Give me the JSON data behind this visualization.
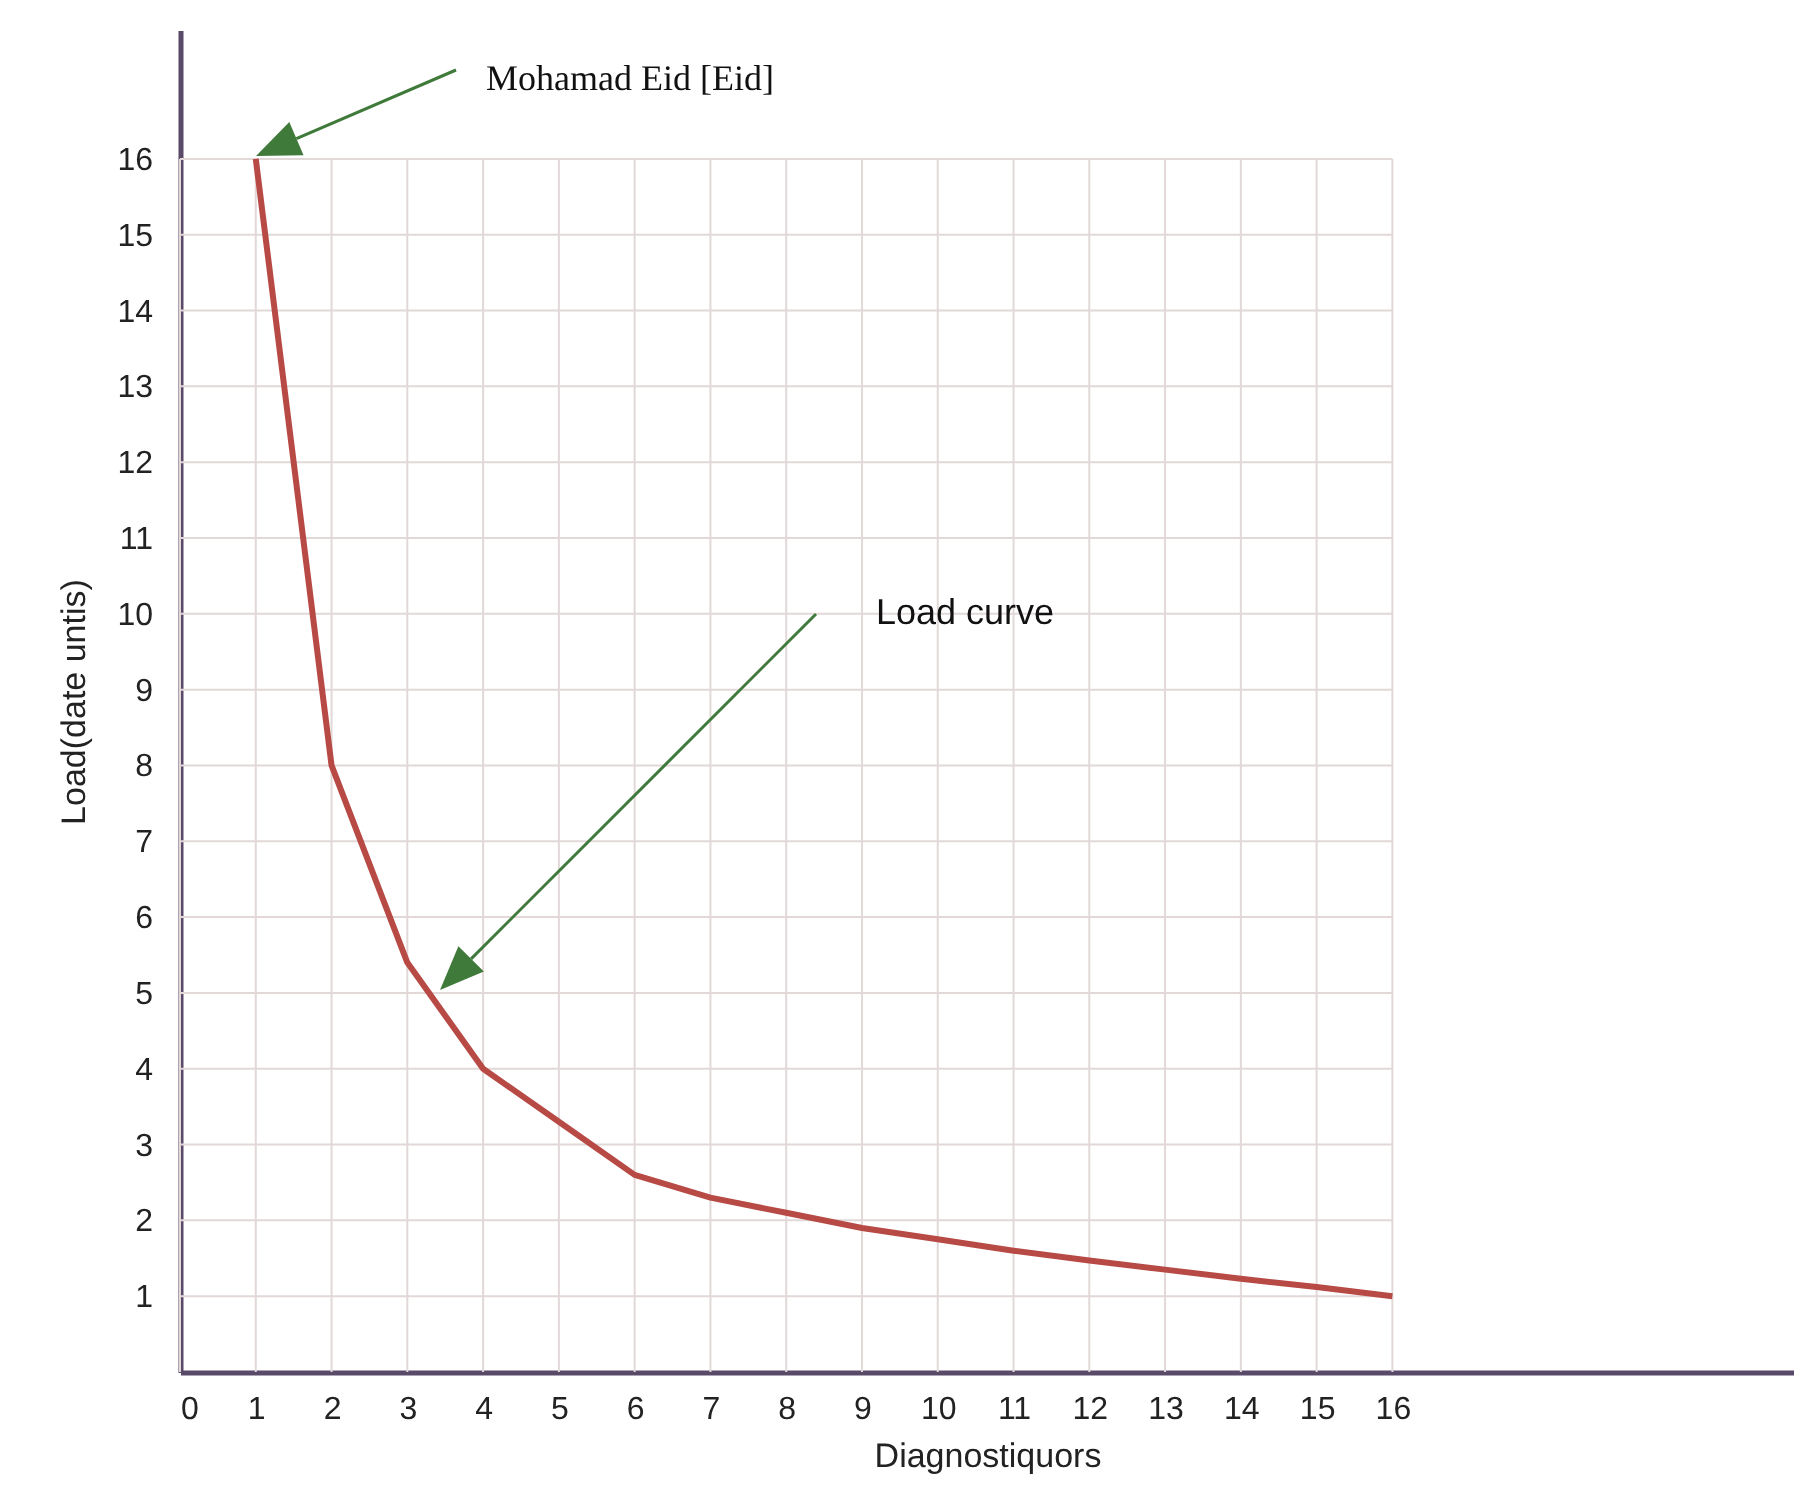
{
  "chart_data": {
    "type": "line",
    "xlabel": "Diagnostiquors",
    "ylabel": "Load(date untis)",
    "x": [
      1,
      2,
      3,
      4,
      5,
      6,
      7,
      8,
      9,
      10,
      11,
      12,
      13,
      14,
      15,
      16
    ],
    "series": [
      {
        "color": "#b84a45",
        "values": [
          16,
          8,
          5.4,
          4,
          3.3,
          2.6,
          2.3,
          2.1,
          1.9,
          1.75,
          1.6,
          1.47,
          1.35,
          1.23,
          1.12,
          1.0
        ]
      }
    ],
    "xlim": [
      0,
      21.3
    ],
    "ylim": [
      0,
      17.7
    ],
    "xticks": [
      0,
      1,
      2,
      3,
      4,
      5,
      6,
      7,
      8,
      9,
      10,
      11,
      12,
      13,
      14,
      15,
      16
    ],
    "yticks": [
      1,
      2,
      3,
      4,
      5,
      6,
      7,
      8,
      9,
      10,
      11,
      12,
      13,
      14,
      15,
      16
    ],
    "grid": true,
    "marker": "none",
    "line_style": "solid",
    "annotations": [
      "Mohamad Eid [Eid]",
      "Load curve"
    ]
  }
}
